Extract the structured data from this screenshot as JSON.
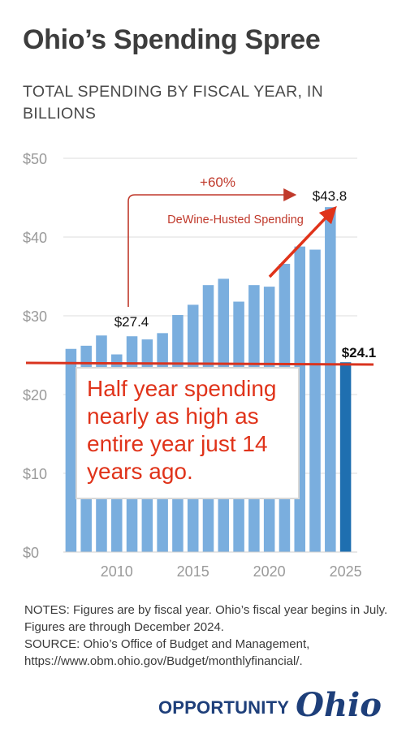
{
  "header": {
    "title": "Ohio’s Spending Spree",
    "subtitle": "TOTAL SPENDING BY FISCAL YEAR, IN BILLIONS"
  },
  "colors": {
    "bar": "#7aaede",
    "highlight_bar": "#1f6fb0",
    "grid": "#dcdcdc",
    "annotation_red": "#c0392b",
    "overlay_text": "#e0331a",
    "logo": "#1e3f7a"
  },
  "chart_data": {
    "type": "bar",
    "x": [
      2007,
      2008,
      2009,
      2010,
      2011,
      2012,
      2013,
      2014,
      2015,
      2016,
      2017,
      2018,
      2019,
      2020,
      2021,
      2022,
      2023,
      2024,
      2025
    ],
    "values": [
      25.8,
      26.2,
      27.5,
      25.1,
      27.4,
      27.0,
      27.8,
      30.1,
      31.4,
      33.9,
      34.7,
      31.8,
      33.9,
      33.7,
      36.6,
      38.8,
      38.4,
      43.8,
      24.1
    ],
    "highlight_index": 18,
    "ylim": [
      0,
      50
    ],
    "yticks": [
      "$0",
      "$10",
      "$20",
      "$30",
      "$40",
      "$50"
    ],
    "ytick_values": [
      0,
      10,
      20,
      30,
      40,
      50
    ],
    "xticks": [
      "2010",
      "2015",
      "2020",
      "2025"
    ],
    "xtick_values": [
      2010,
      2015,
      2020,
      2025
    ],
    "grid": true,
    "annotations": {
      "label_2011": "$27.4",
      "label_2024": "$43.8",
      "label_2025": "$24.1",
      "growth": "+60%",
      "dewine": "DeWine-Husted Spending",
      "reference_line_value": 24.1
    }
  },
  "overlay": {
    "text": "Half year spending nearly as high as entire year just 14 years ago."
  },
  "notes": {
    "line1": "NOTES: Figures are by fiscal year. Ohio’s fiscal year begins in July. Figures are through December 2024.",
    "line2": "SOURCE: Ohio’s Office of Budget and Management, https://www.obm.ohio.gov/Budget/monthlyfinancial/."
  },
  "logo": {
    "main": "OPPORTUNITY",
    "script": "Ohio"
  }
}
